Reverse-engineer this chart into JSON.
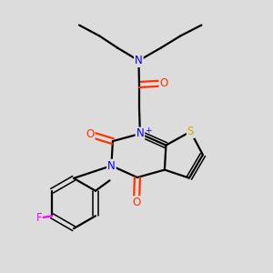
{
  "background_color": "#dcdcdc",
  "atom_colors": {
    "N": "#0000ff",
    "O": "#ff3300",
    "S": "#ccaa00",
    "F": "#ff00ff",
    "C": "#000000"
  },
  "bond_color": "#000000",
  "bond_width": 1.6,
  "figsize": [
    3.0,
    3.0
  ],
  "dpi": 100
}
